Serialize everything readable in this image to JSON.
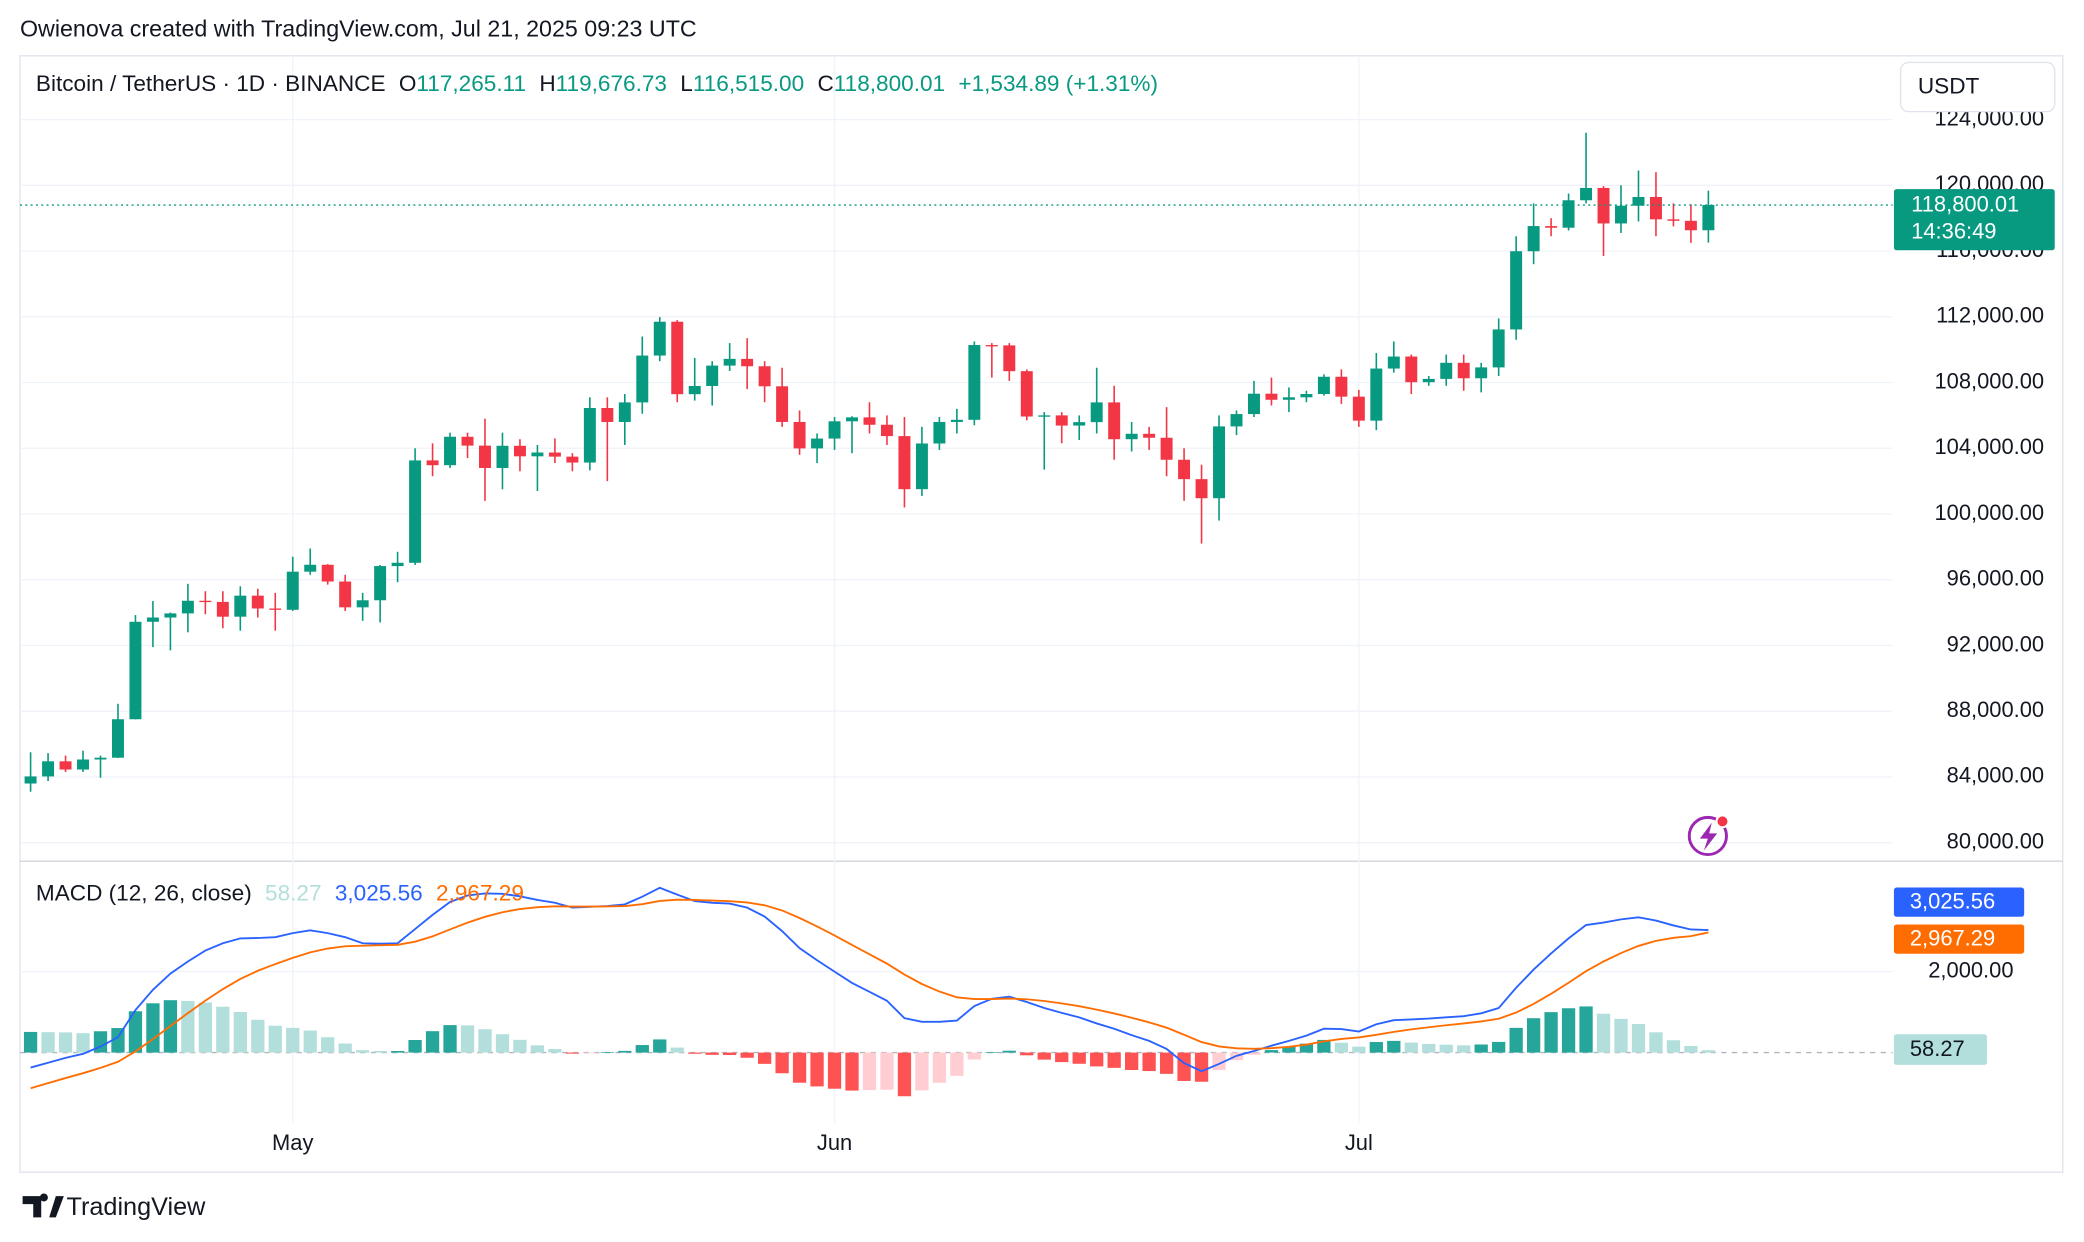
{
  "header": {
    "attribution": "Owienova created with TradingView.com, Jul 21, 2025 09:23 UTC"
  },
  "footer": {
    "brand": "TradingView"
  },
  "chart_data": [
    {
      "type": "candlestick",
      "title": "Bitcoin / TetherUS · 1D · BINANCE",
      "legend_keys": [
        "O",
        "H",
        "L",
        "C"
      ],
      "change_label": "+1,534.89 (+1.31%)",
      "currency": "USDT",
      "countdown": "14:36:49",
      "up_color": "#089981",
      "down_color": "#f23645",
      "categories": [
        null,
        null,
        null,
        null,
        null,
        null,
        null,
        null,
        null,
        null,
        null,
        null,
        null,
        null,
        null,
        "May",
        null,
        null,
        null,
        null,
        null,
        null,
        null,
        null,
        null,
        null,
        null,
        null,
        null,
        null,
        null,
        null,
        null,
        null,
        null,
        null,
        null,
        null,
        null,
        null,
        null,
        null,
        null,
        null,
        null,
        null,
        "Jun",
        null,
        null,
        null,
        null,
        null,
        null,
        null,
        null,
        null,
        null,
        null,
        null,
        null,
        null,
        null,
        null,
        null,
        null,
        null,
        null,
        null,
        null,
        null,
        null,
        null,
        null,
        null,
        null,
        null,
        "Jul",
        null,
        null,
        null,
        null,
        null,
        null,
        null,
        null,
        null,
        null,
        null,
        null,
        null,
        null,
        null,
        null,
        null,
        null,
        null,
        null
      ],
      "open": [
        83600,
        84030,
        84950,
        84450,
        85060,
        85170,
        87510,
        93440,
        93700,
        93950,
        94720,
        94650,
        93750,
        95030,
        94250,
        94170,
        96490,
        96910,
        95890,
        94320,
        94750,
        96830,
        97030,
        103260,
        102970,
        104700,
        104160,
        102800,
        104150,
        103510,
        103740,
        103490,
        103130,
        106450,
        105600,
        106790,
        109640,
        111700,
        107290,
        107790,
        109030,
        109440,
        108990,
        107770,
        105600,
        103990,
        104590,
        105640,
        105880,
        105430,
        104740,
        101510,
        104290,
        105600,
        105730,
        110280,
        110260,
        108690,
        105930,
        106000,
        105380,
        105590,
        106790,
        104550,
        104880,
        104640,
        103300,
        102120,
        100960,
        105330,
        106080,
        107320,
        106950,
        107100,
        107300,
        108350,
        107140,
        105680,
        108850,
        109580,
        108020,
        108220,
        109200,
        108260,
        108920,
        111230,
        115990,
        117520,
        117420,
        119090,
        119840,
        117680,
        118760,
        119290,
        117930,
        117840,
        117265.11
      ],
      "high": [
        85500,
        85450,
        85300,
        85600,
        85300,
        88450,
        93850,
        94700,
        94000,
        95750,
        95300,
        95300,
        95600,
        95450,
        95200,
        97400,
        97900,
        96950,
        96300,
        95200,
        96900,
        97700,
        104000,
        104300,
        104950,
        104950,
        105800,
        104950,
        104550,
        104200,
        104600,
        103700,
        107100,
        107100,
        107300,
        110800,
        111980,
        111800,
        109500,
        109300,
        110400,
        110700,
        109300,
        108900,
        106300,
        104900,
        105900,
        105950,
        106800,
        106000,
        105900,
        105300,
        105900,
        106400,
        110500,
        110400,
        110400,
        108800,
        106200,
        106200,
        106000,
        108900,
        107800,
        105600,
        105300,
        106500,
        104000,
        103000,
        106000,
        106300,
        108100,
        108300,
        107700,
        107500,
        108500,
        108800,
        107550,
        109800,
        110500,
        109700,
        108400,
        109700,
        109700,
        109200,
        111900,
        116900,
        118900,
        118000,
        119500,
        123200,
        119950,
        120000,
        120900,
        120800,
        118900,
        118850,
        119676.73
      ],
      "low": [
        83100,
        83750,
        84300,
        84300,
        83950,
        85150,
        87500,
        91900,
        91700,
        92800,
        93900,
        93050,
        92900,
        93700,
        92900,
        94100,
        96300,
        95700,
        94100,
        93500,
        93400,
        95850,
        96900,
        102300,
        102800,
        103400,
        100800,
        101500,
        102600,
        101400,
        103100,
        102600,
        102650,
        102000,
        104200,
        106100,
        109300,
        106800,
        106900,
        106600,
        108700,
        107600,
        106800,
        105300,
        103600,
        103100,
        103900,
        103700,
        104900,
        104200,
        100400,
        101100,
        103900,
        104900,
        105400,
        108300,
        108100,
        105700,
        102700,
        104300,
        104500,
        104900,
        103300,
        103800,
        103900,
        102300,
        100800,
        98200,
        99600,
        104800,
        105900,
        106600,
        106200,
        106800,
        107200,
        106700,
        105300,
        105100,
        108600,
        107300,
        107800,
        107800,
        107500,
        107400,
        108400,
        110600,
        115200,
        116900,
        117250,
        118900,
        115700,
        117100,
        117800,
        116900,
        117500,
        116500,
        116515.0
      ],
      "close": [
        84030,
        84950,
        84450,
        85060,
        85170,
        87510,
        93440,
        93700,
        93950,
        94720,
        94650,
        93750,
        95030,
        94250,
        94170,
        96490,
        96910,
        95890,
        94320,
        94750,
        96830,
        97030,
        103260,
        102970,
        104700,
        104160,
        102800,
        104150,
        103510,
        103740,
        103490,
        103130,
        106450,
        105600,
        106790,
        109640,
        111700,
        107290,
        107790,
        109030,
        109440,
        108990,
        107770,
        105600,
        103990,
        104590,
        105640,
        105880,
        105430,
        104740,
        101510,
        104290,
        105600,
        105730,
        110280,
        110260,
        108690,
        105930,
        106000,
        105380,
        105590,
        106790,
        104550,
        104880,
        104640,
        103300,
        102120,
        100960,
        105330,
        106080,
        107320,
        106950,
        107100,
        107300,
        108350,
        107140,
        105680,
        108850,
        109580,
        108020,
        108220,
        109200,
        108260,
        108920,
        111230,
        115990,
        117520,
        117420,
        119090,
        119840,
        117680,
        118760,
        119290,
        117930,
        117840,
        117265.11,
        118800.01
      ],
      "open_labels": {
        "96": "117,265.11"
      },
      "high_labels": {
        "96": "119,676.73"
      },
      "low_labels": {
        "96": "116,515.00"
      },
      "close_labels": {
        "96": "118,800.01"
      },
      "ylim": [
        78870,
        127880
      ],
      "yticks": [
        {
          "value": 80000,
          "label": "80,000.00"
        },
        {
          "value": 84000,
          "label": "84,000.00"
        },
        {
          "value": 88000,
          "label": "88,000.00"
        },
        {
          "value": 92000,
          "label": "92,000.00"
        },
        {
          "value": 96000,
          "label": "96,000.00"
        },
        {
          "value": 100000,
          "label": "100,000.00"
        },
        {
          "value": 104000,
          "label": "104,000.00"
        },
        {
          "value": 108000,
          "label": "108,000.00"
        },
        {
          "value": 112000,
          "label": "112,000.00"
        },
        {
          "value": 116000,
          "label": "116,000.00"
        },
        {
          "value": 120000,
          "label": "120,000.00"
        },
        {
          "value": 124000,
          "label": "124,000.00"
        }
      ],
      "grid": true
    },
    {
      "type": "macd",
      "title": "MACD (12, 26, close)",
      "histogram": {
        "values": [
          510,
          504,
          499,
          479,
          527,
          606,
          1021,
          1217,
          1294,
          1275,
          1236,
          1133,
          1002,
          810,
          664,
          611,
          545,
          380,
          224,
          59,
          39,
          39,
          311,
          529,
          679,
          671,
          577,
          454,
          315,
          180,
          88,
          -26,
          -5,
          12,
          42,
          186,
          325,
          124,
          -29,
          -55,
          -60,
          -128,
          -278,
          -510,
          -744,
          -835,
          -892,
          -938,
          -926,
          -917,
          -1078,
          -934,
          -747,
          -574,
          -171,
          7,
          46,
          -67,
          -174,
          -235,
          -276,
          -341,
          -377,
          -430,
          -456,
          -525,
          -700,
          -720,
          -432,
          -186,
          -53,
          62,
          146,
          221,
          313,
          242,
          146,
          261,
          289,
          247,
          214,
          195,
          180,
          200,
          264,
          611,
          849,
          999,
          1095,
          1140,
          960,
          832,
          706,
          501,
          305,
          164,
          58.27
        ],
        "colors": [
          "#26a69a",
          "#b2dfdb",
          "#ffcdd2",
          "#ff5252"
        ]
      },
      "macd": {
        "color": "#2962ff",
        "values": [
          -370,
          -250,
          -130,
          -30,
          150,
          380,
          1050,
          1550,
          1950,
          2250,
          2520,
          2700,
          2820,
          2830,
          2850,
          2950,
          3020,
          2950,
          2850,
          2700,
          2690,
          2700,
          3050,
          3400,
          3720,
          3880,
          3930,
          3920,
          3860,
          3770,
          3700,
          3580,
          3600,
          3620,
          3660,
          3850,
          4070,
          3900,
          3740,
          3700,
          3680,
          3580,
          3360,
          3000,
          2580,
          2280,
          2000,
          1720,
          1500,
          1280,
          850,
          760,
          760,
          790,
          1150,
          1330,
          1380,
          1250,
          1100,
          980,
          870,
          720,
          590,
          430,
          290,
          90,
          -260,
          -460,
          -280,
          -80,
          40,
          170,
          290,
          420,
          590,
          580,
          520,
          700,
          800,
          820,
          840,
          870,
          900,
          970,
          1100,
          1600,
          2050,
          2450,
          2820,
          3150,
          3210,
          3290,
          3340,
          3260,
          3140,
          3040,
          3025.56
        ],
        "value_labels": {
          "96": "3,025.56"
        }
      },
      "signal": {
        "color": "#ff6d00",
        "values": [
          -880,
          -754,
          -629,
          -509,
          -377,
          -226,
          29,
          333,
          656,
          975,
          1284,
          1567,
          1818,
          2020,
          2186,
          2339,
          2475,
          2570,
          2626,
          2641,
          2651,
          2661,
          2739,
          2871,
          3041,
          3209,
          3353,
          3466,
          3545,
          3590,
          3612,
          3606,
          3605,
          3608,
          3618,
          3664,
          3745,
          3776,
          3769,
          3755,
          3740,
          3708,
          3638,
          3510,
          3324,
          3115,
          2892,
          2658,
          2426,
          2197,
          1928,
          1694,
          1507,
          1364,
          1321,
          1323,
          1334,
          1317,
          1274,
          1215,
          1146,
          1061,
          967,
          860,
          746,
          615,
          440,
          260,
          152,
          106,
          93,
          108,
          144,
          199,
          277,
          338,
          374,
          439,
          511,
          573,
          626,
          675,
          720,
          770,
          836,
          989,
          1201,
          1451,
          1725,
          2010,
          2250,
          2458,
          2634,
          2759,
          2835,
          2876,
          2967.29
        ],
        "value_labels": {
          "96": "2,967.29"
        }
      },
      "ylim": [
        -1740,
        4660
      ],
      "yticks": [
        {
          "value": 2000,
          "label": "2,000.00"
        }
      ]
    }
  ]
}
